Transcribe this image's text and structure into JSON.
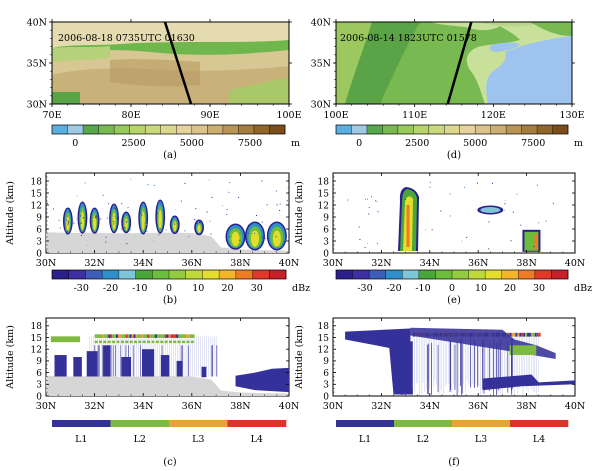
{
  "palettes": {
    "topo": [
      "#5aaee0",
      "#9fcae3",
      "#56a84b",
      "#78ba51",
      "#98c95b",
      "#b6d46a",
      "#cbd97d",
      "#dcd98e",
      "#e6d29c",
      "#dcc38a",
      "#cdae70",
      "#b99455",
      "#a67c3d",
      "#916428",
      "#7b4d1a"
    ],
    "dbz": [
      "#2b1f8c",
      "#3b2fa2",
      "#3d5db8",
      "#2e8fc9",
      "#7ec6d6",
      "#4aa63a",
      "#6bbd3b",
      "#93cc3e",
      "#bfd93b",
      "#e4dd2c",
      "#f3b62a",
      "#ef7c25",
      "#e2382a",
      "#c8202a"
    ],
    "cls": [
      "#35319a",
      "#7eb940",
      "#e9a23a",
      "#d9362b"
    ],
    "ground": "#d6d6d6"
  },
  "panels": {
    "a": {
      "letter": "(a)",
      "annotation": "2006-08-18 0735UTC 01630",
      "x_ticks": [
        "70E",
        "80E",
        "90E",
        "100E"
      ],
      "y_ticks": [
        "40N",
        "35N",
        "30N"
      ],
      "x_range_deg": [
        70,
        100
      ],
      "y_range_deg": [
        30,
        40
      ],
      "track_deg": [
        [
          84.3,
          40
        ],
        [
          87.6,
          30
        ]
      ],
      "colorbar_ticks": [
        "0",
        "2500",
        "5000",
        "7500"
      ],
      "colorbar_unit": "m",
      "colorbar_range": [
        -1000,
        9000
      ]
    },
    "d": {
      "letter": "(d)",
      "annotation": "2006-08-14 1823UTC 01578",
      "x_ticks": [
        "100E",
        "110E",
        "120E",
        "130E"
      ],
      "y_ticks": [
        "40N",
        "35N",
        "30N"
      ],
      "x_range_deg": [
        100,
        130
      ],
      "y_range_deg": [
        30,
        40
      ],
      "track_deg": [
        [
          117.2,
          40
        ],
        [
          114.2,
          30
        ]
      ],
      "colorbar_ticks": [
        "0",
        "2500",
        "5000",
        "7500"
      ],
      "colorbar_unit": "m",
      "colorbar_range": [
        -1000,
        9000
      ]
    },
    "b": {
      "letter": "(b)",
      "ylabel": "Altitude (km)",
      "y_ticks": [
        "18",
        "15",
        "12",
        "9",
        "6",
        "3",
        "0"
      ],
      "x_ticks": [
        "30N",
        "32N",
        "34N",
        "36N",
        "38N",
        "40N"
      ],
      "colorbar_ticks": [
        "-30",
        "-20",
        "-10",
        "0",
        "10",
        "20",
        "30"
      ],
      "colorbar_unit": "dBz"
    },
    "e": {
      "letter": "(e)",
      "ylabel": "Altitude (km)",
      "y_ticks": [
        "18",
        "15",
        "12",
        "9",
        "6",
        "3",
        "0"
      ],
      "x_ticks": [
        "30N",
        "32N",
        "34N",
        "36N",
        "38N",
        "40N"
      ],
      "colorbar_ticks": [
        "-30",
        "-20",
        "-10",
        "0",
        "10",
        "20",
        "30"
      ],
      "colorbar_unit": "dBz"
    },
    "c": {
      "letter": "(c)",
      "ylabel": "Altitude (km)",
      "y_ticks": [
        "18",
        "15",
        "12",
        "9",
        "6",
        "3",
        "0"
      ],
      "x_ticks": [
        "30N",
        "32N",
        "34N",
        "36N",
        "38N",
        "40N"
      ],
      "class_labels": [
        "L1",
        "L2",
        "L3",
        "L4"
      ]
    },
    "f": {
      "letter": "(f)",
      "ylabel": "Altitude (km)",
      "y_ticks": [
        "18",
        "15",
        "12",
        "9",
        "6",
        "3",
        "0"
      ],
      "x_ticks": [
        "30N",
        "32N",
        "34N",
        "36N",
        "38N",
        "40N"
      ],
      "class_labels": [
        "L1",
        "L2",
        "L3",
        "L4"
      ]
    }
  },
  "chart_data": [
    {
      "type": "heatmap",
      "panel": "b",
      "x_range": [
        30,
        40
      ],
      "y_range": [
        0,
        20
      ],
      "ground_km": [
        [
          30,
          5.2
        ],
        [
          31,
          5.0
        ],
        [
          32,
          5.1
        ],
        [
          33,
          4.9
        ],
        [
          34,
          5.0
        ],
        [
          35,
          5.1
        ],
        [
          36,
          5.0
        ],
        [
          36.8,
          4.2
        ],
        [
          37.2,
          1.4
        ],
        [
          38,
          0.9
        ],
        [
          39,
          0.7
        ],
        [
          40,
          0.6
        ]
      ],
      "cells": [
        {
          "lat": 30.9,
          "base": 5,
          "top": 11
        },
        {
          "lat": 31.5,
          "base": 5.2,
          "top": 12.5
        },
        {
          "lat": 32.0,
          "base": 5.2,
          "top": 11
        },
        {
          "lat": 32.8,
          "base": 5.3,
          "top": 12
        },
        {
          "lat": 33.3,
          "base": 5.3,
          "top": 10
        },
        {
          "lat": 34.0,
          "base": 5,
          "top": 12.5
        },
        {
          "lat": 34.7,
          "base": 5.2,
          "top": 13
        },
        {
          "lat": 35.3,
          "base": 5.1,
          "top": 9
        },
        {
          "lat": 36.3,
          "base": 4.8,
          "top": 8
        },
        {
          "lat": 37.8,
          "base": 1.2,
          "top": 7
        },
        {
          "lat": 38.6,
          "base": 1.0,
          "top": 7.5
        },
        {
          "lat": 39.5,
          "base": 1.0,
          "top": 7.5
        }
      ]
    },
    {
      "type": "heatmap",
      "panel": "e",
      "x_range": [
        30,
        40
      ],
      "y_range": [
        0,
        20
      ],
      "cells": [
        {
          "lat": 33.1,
          "base": 0.5,
          "top": 16.5
        },
        {
          "lat": 36.5,
          "base": 9.5,
          "top": 12
        },
        {
          "lat": 38.2,
          "base": 0.3,
          "top": 5.8
        }
      ]
    },
    {
      "type": "heatmap",
      "panel": "c",
      "x_range": [
        30,
        40
      ],
      "y_range": [
        0,
        20
      ],
      "ground_km": [
        [
          30,
          5.2
        ],
        [
          31,
          5.0
        ],
        [
          32,
          5.1
        ],
        [
          33,
          4.9
        ],
        [
          34,
          5.0
        ],
        [
          35,
          5.1
        ],
        [
          36,
          5.0
        ],
        [
          36.8,
          4.2
        ],
        [
          37.2,
          1.4
        ],
        [
          38,
          0.9
        ],
        [
          39,
          0.7
        ],
        [
          40,
          0.6
        ]
      ],
      "layer_top_km": 15,
      "classes": [
        "L1",
        "L2",
        "L3",
        "L4"
      ]
    },
    {
      "type": "heatmap",
      "panel": "f",
      "x_range": [
        30,
        40
      ],
      "y_range": [
        0,
        20
      ],
      "layer_top_km": 16,
      "classes": [
        "L1",
        "L2",
        "L3",
        "L4"
      ]
    }
  ]
}
